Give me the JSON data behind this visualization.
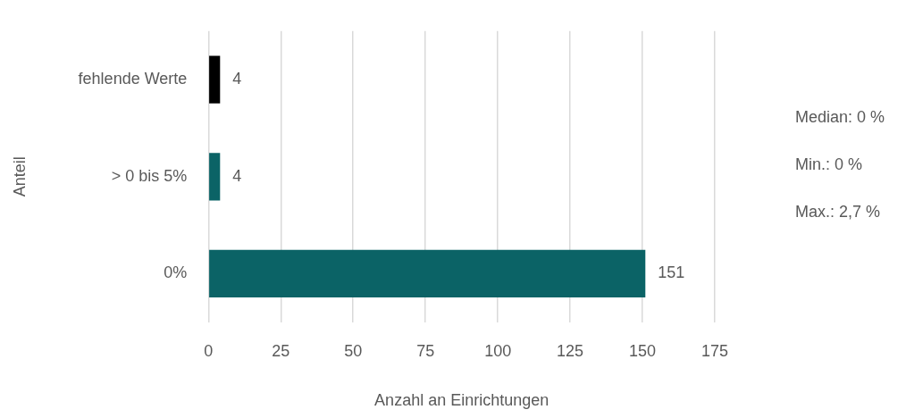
{
  "chart_data": {
    "type": "bar",
    "orientation": "horizontal",
    "categories": [
      "fehlende Werte",
      "> 0 bis 5%",
      "0%"
    ],
    "values": [
      4,
      4,
      151
    ],
    "colors": [
      "#000000",
      "#0b6366",
      "#0b6366"
    ],
    "xlim": [
      0,
      175
    ],
    "xticks": [
      0,
      25,
      50,
      75,
      100,
      125,
      150,
      175
    ],
    "xlabel": "Anzahl an Einrichtungen",
    "ylabel": "Anteil",
    "grid": "x",
    "data_labels": true,
    "legend": false,
    "annotations": [
      "Median: 0 %",
      "Min.: 0 %",
      "Max.: 2,7 %"
    ]
  }
}
